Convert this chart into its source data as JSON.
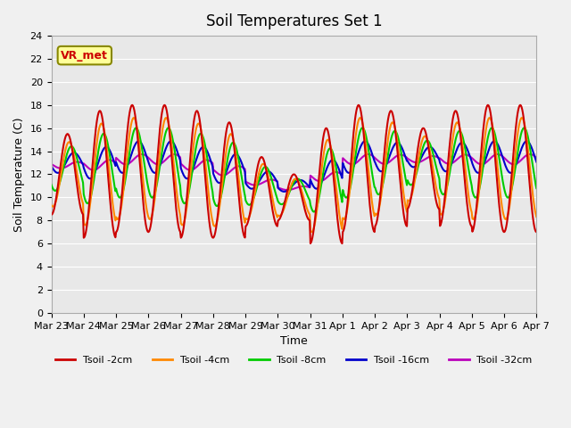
{
  "title": "Soil Temperatures Set 1",
  "xlabel": "Time",
  "ylabel": "Soil Temperature (C)",
  "ylim": [
    0,
    24
  ],
  "background_color": "#e8e8e8",
  "fig_color": "#f0f0f0",
  "grid_color": "#ffffff",
  "date_labels": [
    "Mar 23",
    "Mar 24",
    "Mar 25",
    "Mar 26",
    "Mar 27",
    "Mar 28",
    "Mar 29",
    "Mar 30",
    "Mar 31",
    "Apr 1",
    "Apr 2",
    "Apr 3",
    "Apr 4",
    "Apr 5",
    "Apr 6",
    "Apr 7"
  ],
  "legend_entries": [
    "Tsoil -2cm",
    "Tsoil -4cm",
    "Tsoil -8cm",
    "Tsoil -16cm",
    "Tsoil -32cm"
  ],
  "line_colors": [
    "#cc0000",
    "#ff8800",
    "#00cc00",
    "#0000cc",
    "#bb00bb"
  ],
  "line_widths": [
    1.5,
    1.5,
    1.5,
    1.5,
    1.5
  ],
  "vrmet_label": "VR_met",
  "vrmet_color": "#cc0000",
  "vrmet_bg": "#ffff99",
  "vrmet_border": "#888800"
}
